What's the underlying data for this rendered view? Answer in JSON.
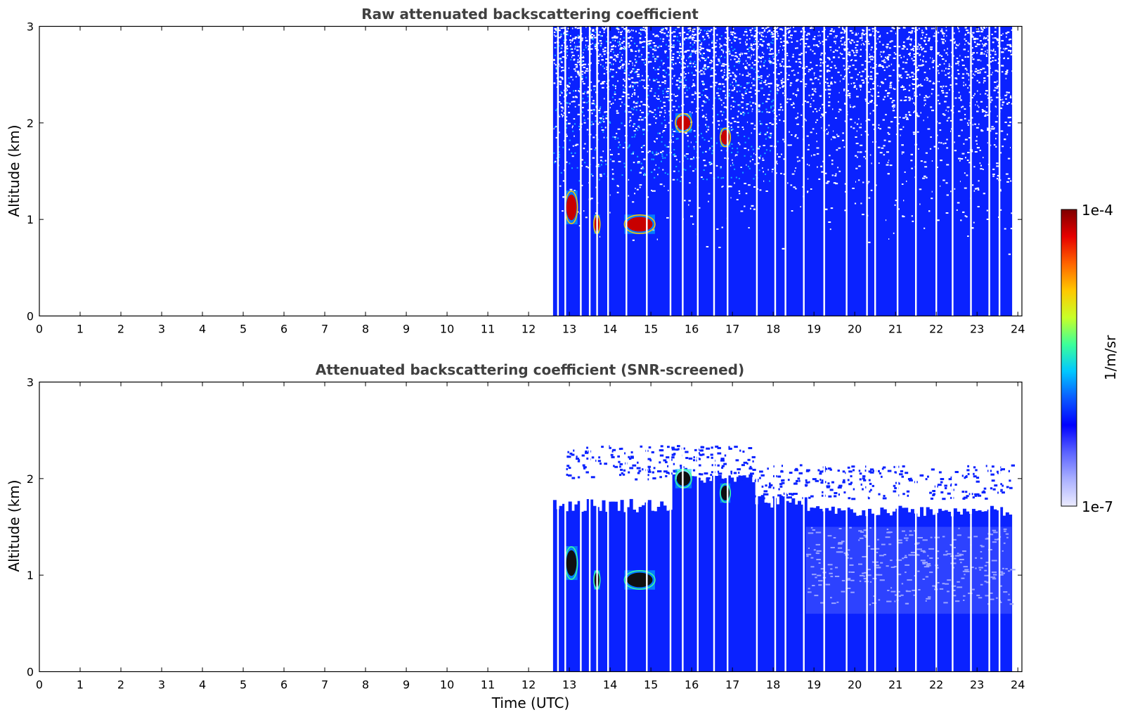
{
  "colors": {
    "axis": "#000000",
    "title": "#404040",
    "background": "#ffffff",
    "data_main": "#0a22ff",
    "data_light": "#4a5cff",
    "data_pale": "#9aa4ff",
    "gap": "#ffffff",
    "colormap": [
      "#ebebff",
      "#aab0ff",
      "#5a62ff",
      "#0000ff",
      "#0a5aff",
      "#00c8ff",
      "#3cff9a",
      "#c8ff28",
      "#ffc800",
      "#ff6400",
      "#e60000",
      "#7f0000"
    ]
  },
  "colorbar": {
    "label": "1/m/sr",
    "max_label": "1e-4",
    "min_label": "1e-7",
    "range": [
      1e-07,
      0.0001
    ],
    "scale": "log"
  },
  "chart_data": [
    {
      "type": "heatmap",
      "title": "Raw attenuated backscattering coefficient",
      "xlabel": "",
      "ylabel": "Altitude (km)",
      "xlim": [
        0,
        24.1
      ],
      "ylim": [
        0,
        3
      ],
      "x_ticks": [
        "0",
        "1",
        "2",
        "3",
        "4",
        "5",
        "6",
        "7",
        "8",
        "9",
        "10",
        "11",
        "12",
        "13",
        "14",
        "15",
        "16",
        "17",
        "18",
        "19",
        "20",
        "21",
        "22",
        "23",
        "24"
      ],
      "y_ticks": [
        "0",
        "1",
        "2",
        "3"
      ],
      "data_start_hour": 12.6,
      "data_end_hour": 23.85,
      "gap_hours": [
        12.72,
        12.9,
        13.28,
        13.5,
        13.68,
        13.95,
        14.4,
        14.9,
        15.48,
        15.78,
        16.15,
        16.55,
        16.88,
        17.6,
        18.05,
        18.3,
        18.75,
        19.25,
        19.8,
        20.3,
        20.5,
        21.05,
        21.5,
        22.0,
        22.4,
        22.85,
        23.3,
        23.55
      ],
      "features": [
        {
          "x": [
            12.9,
            13.2
          ],
          "y": [
            0.95,
            1.3
          ],
          "level": "high"
        },
        {
          "x": [
            13.6,
            13.75
          ],
          "y": [
            0.85,
            1.05
          ],
          "level": "high"
        },
        {
          "x": [
            14.35,
            15.1
          ],
          "y": [
            0.85,
            1.05
          ],
          "level": "high"
        },
        {
          "x": [
            15.6,
            16.0
          ],
          "y": [
            1.9,
            2.1
          ],
          "level": "high"
        },
        {
          "x": [
            16.7,
            16.95
          ],
          "y": [
            1.75,
            1.95
          ],
          "level": "high"
        }
      ]
    },
    {
      "type": "heatmap",
      "title": "Attenuated backscattering coefficient (SNR-screened)",
      "xlabel": "Time (UTC)",
      "ylabel": "Altitude (km)",
      "xlim": [
        0,
        24.1
      ],
      "ylim": [
        0,
        3
      ],
      "x_ticks": [
        "0",
        "1",
        "2",
        "3",
        "4",
        "5",
        "6",
        "7",
        "8",
        "9",
        "10",
        "11",
        "12",
        "13",
        "14",
        "15",
        "16",
        "17",
        "18",
        "19",
        "20",
        "21",
        "22",
        "23",
        "24"
      ],
      "y_ticks": [
        "0",
        "1",
        "2",
        "3"
      ],
      "data_start_hour": 12.6,
      "data_end_hour": 23.85,
      "gap_hours": [
        12.72,
        12.9,
        13.28,
        13.5,
        13.68,
        13.95,
        14.4,
        14.9,
        15.48,
        15.78,
        16.15,
        16.55,
        16.88,
        17.6,
        18.05,
        18.3,
        18.75,
        19.25,
        19.8,
        20.3,
        20.5,
        21.05,
        21.5,
        22.0,
        22.4,
        22.85,
        23.3,
        23.55
      ],
      "features": [
        {
          "x": [
            12.9,
            13.2
          ],
          "y": [
            0.95,
            1.3
          ],
          "level": "high"
        },
        {
          "x": [
            13.6,
            13.75
          ],
          "y": [
            0.85,
            1.05
          ],
          "level": "high"
        },
        {
          "x": [
            14.35,
            15.1
          ],
          "y": [
            0.85,
            1.05
          ],
          "level": "high"
        },
        {
          "x": [
            15.6,
            16.0
          ],
          "y": [
            1.9,
            2.1
          ],
          "level": "high"
        },
        {
          "x": [
            16.7,
            16.95
          ],
          "y": [
            1.75,
            1.95
          ],
          "level": "high"
        }
      ]
    }
  ]
}
